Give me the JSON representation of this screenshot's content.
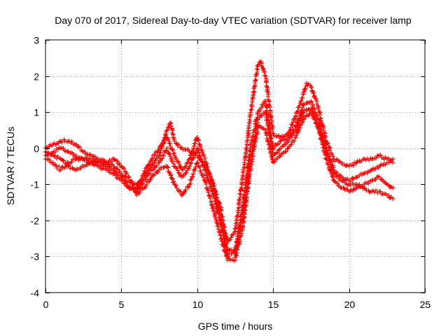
{
  "chart_data": {
    "type": "scatter",
    "title": "Day 070 of 2017, Sidereal Day-to-day VTEC variation (SDTVAR) for receiver lamp",
    "xlabel": "GPS time / hours",
    "ylabel": "SDTVAR / TECUs",
    "xlim": [
      0,
      25
    ],
    "ylim": [
      -4,
      3
    ],
    "x_ticks": [
      "0",
      "5",
      "10",
      "15",
      "20",
      "25"
    ],
    "y_ticks": [
      "-4",
      "-3",
      "-2",
      "-1",
      "0",
      "1",
      "2",
      "3"
    ],
    "grid": true,
    "marker": "plus",
    "marker_color": "#ff0000",
    "series": [
      {
        "x": [
          0,
          0.5,
          1,
          1.5,
          2,
          2.5,
          3,
          3.5,
          4,
          4.5,
          5,
          5.5,
          6,
          6.5,
          7,
          7.5,
          8,
          8.25,
          8.5,
          9,
          9.5,
          10,
          10.5,
          11,
          11.5,
          12,
          12.5,
          13,
          13.5,
          13.8,
          14,
          14.2,
          14.5,
          15,
          15.5,
          16,
          16.5,
          17,
          17.2,
          17.5,
          18,
          18.5,
          19,
          19.5,
          20,
          20.5,
          21,
          21.5,
          22,
          22.5,
          22.9
        ],
        "y": [
          0,
          0.1,
          0.2,
          0.2,
          0.1,
          -0.1,
          -0.2,
          -0.3,
          -0.4,
          -0.5,
          -0.7,
          -0.9,
          -1.0,
          -0.8,
          -0.5,
          -0.2,
          0.5,
          0.7,
          0.2,
          0.0,
          -0.1,
          -0.2,
          -0.5,
          -0.9,
          -1.6,
          -2.6,
          -2.3,
          -0.8,
          0.9,
          1.8,
          2.3,
          2.4,
          2.0,
          0.4,
          0.3,
          0.4,
          0.9,
          1.5,
          1.8,
          1.7,
          1.1,
          0.2,
          -0.3,
          -0.4,
          -0.5,
          -0.4,
          -0.3,
          -0.3,
          -0.2,
          -0.3,
          -0.3
        ]
      },
      {
        "x": [
          0,
          0.5,
          1,
          1.5,
          2,
          2.5,
          3,
          3.5,
          4,
          4.5,
          5,
          5.5,
          6,
          6.5,
          7,
          7.5,
          8,
          8.5,
          9,
          9.5,
          10,
          10.5,
          11,
          11.5,
          12,
          12.5,
          13,
          13.5,
          14,
          14.5,
          15,
          15.5,
          16,
          16.5,
          17,
          17.5,
          18,
          18.5,
          19,
          19.5,
          20,
          20.5,
          21,
          21.5,
          22,
          22.5,
          22.9
        ],
        "y": [
          -0.2,
          -0.1,
          0.0,
          -0.1,
          -0.2,
          -0.3,
          -0.4,
          -0.4,
          -0.5,
          -0.6,
          -0.8,
          -1.1,
          -1.2,
          -0.9,
          -0.6,
          -0.4,
          0.0,
          -0.5,
          -0.8,
          -0.5,
          0.0,
          -0.6,
          -1.2,
          -2.0,
          -3.0,
          -2.8,
          -1.6,
          0.0,
          1.0,
          1.3,
          0.0,
          0.2,
          0.3,
          0.6,
          1.2,
          1.3,
          0.8,
          0.0,
          -0.6,
          -0.8,
          -0.9,
          -0.8,
          -0.7,
          -0.6,
          -0.5,
          -0.4,
          -0.4
        ]
      },
      {
        "x": [
          0,
          0.5,
          1,
          1.5,
          2,
          2.5,
          3,
          3.5,
          4,
          4.5,
          5,
          5.5,
          6,
          6.5,
          7,
          7.5,
          8,
          8.5,
          9,
          9.5,
          10,
          10.5,
          11,
          11.5,
          12,
          12.5,
          13,
          13.5,
          14,
          14.5,
          15,
          15.5,
          16,
          16.5,
          17,
          17.5,
          18,
          18.5,
          19,
          19.5,
          20,
          20.5,
          21,
          21.5,
          22,
          22.5,
          22.9
        ],
        "y": [
          -0.3,
          -0.4,
          -0.6,
          -0.4,
          -0.3,
          -0.3,
          -0.3,
          -0.4,
          -0.4,
          -0.3,
          -0.5,
          -0.8,
          -1.3,
          -1.1,
          -0.8,
          -0.6,
          -0.5,
          -1.0,
          -1.3,
          -1.0,
          -0.4,
          -0.9,
          -1.6,
          -2.4,
          -3.1,
          -3.1,
          -2.2,
          -0.6,
          0.6,
          0.5,
          -0.4,
          -0.2,
          0.0,
          0.3,
          0.8,
          1.0,
          0.5,
          -0.3,
          -0.9,
          -1.1,
          -1.2,
          -1.1,
          -1.0,
          -0.9,
          -0.8,
          -1.0,
          -1.1
        ]
      },
      {
        "x": [
          0,
          0.5,
          1,
          1.5,
          2,
          2.5,
          3,
          3.5,
          4,
          4.5,
          5,
          5.5,
          6,
          6.5,
          7,
          7.5,
          8,
          8.5,
          9,
          9.5,
          10,
          10.5,
          11,
          11.5,
          12,
          12.5,
          13,
          13.5,
          14,
          14.5,
          15,
          15.5,
          16,
          16.5,
          17,
          17.5,
          18,
          18.5,
          19,
          19.5,
          20,
          20.5,
          21,
          21.5,
          22,
          22.5,
          22.9
        ],
        "y": [
          -0.1,
          -0.2,
          -0.3,
          -0.5,
          -0.6,
          -0.5,
          -0.4,
          -0.5,
          -0.6,
          -0.7,
          -0.9,
          -1.1,
          -1.1,
          -0.7,
          -0.3,
          0.0,
          0.3,
          -0.2,
          -0.6,
          -0.3,
          0.3,
          -0.3,
          -1.0,
          -1.8,
          -2.8,
          -2.9,
          -1.9,
          -0.3,
          0.8,
          1.0,
          -0.2,
          0.0,
          0.2,
          0.5,
          1.0,
          1.1,
          0.6,
          -0.1,
          -0.7,
          -0.9,
          -1.0,
          -1.0,
          -1.1,
          -1.2,
          -1.2,
          -1.3,
          -1.4
        ]
      }
    ]
  }
}
